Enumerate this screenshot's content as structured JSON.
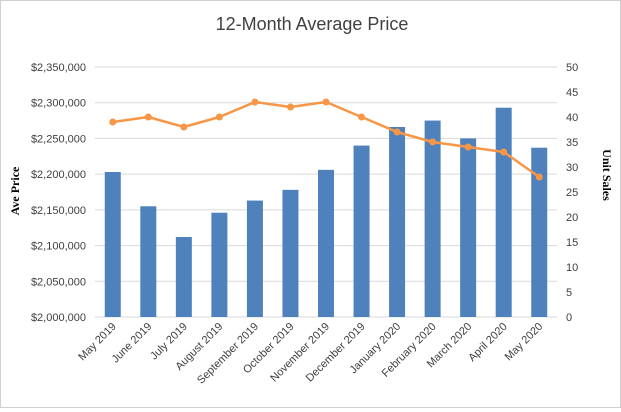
{
  "chart_data": {
    "type": "bar",
    "title": "12-Month Average Price",
    "categories": [
      "May 2019",
      "June 2019",
      "July 2019",
      "August 2019",
      "September 2019",
      "October 2019",
      "November 2019",
      "December 2019",
      "January 2020",
      "February 2020",
      "March 2020",
      "April 2020",
      "May 2020"
    ],
    "series": [
      {
        "type": "bar",
        "axis": "left",
        "color": "#4f81bd",
        "values": [
          2203000,
          2155000,
          2112000,
          2146000,
          2163000,
          2178000,
          2206000,
          2240000,
          2266000,
          2275000,
          2250000,
          2293000,
          2237000
        ]
      },
      {
        "type": "line",
        "axis": "right",
        "color": "#f79646",
        "marker": "circle",
        "values": [
          39,
          40,
          38,
          40,
          43,
          42,
          43,
          40,
          37,
          35,
          34,
          33,
          28
        ]
      }
    ],
    "ylabel": "Ave Price",
    "ylabel_right": "Unit Sales",
    "ylim": [
      2000000,
      2350000
    ],
    "ylim_right": [
      0,
      50
    ],
    "yticks": [
      "$2,000,000",
      "$2,050,000",
      "$2,100,000",
      "$2,150,000",
      "$2,200,000",
      "$2,250,000",
      "$2,300,000",
      "$2,350,000"
    ],
    "yticks_right": [
      "0",
      "5",
      "10",
      "15",
      "20",
      "25",
      "30",
      "35",
      "40",
      "45",
      "50"
    ],
    "grid": true,
    "legend": "none"
  }
}
